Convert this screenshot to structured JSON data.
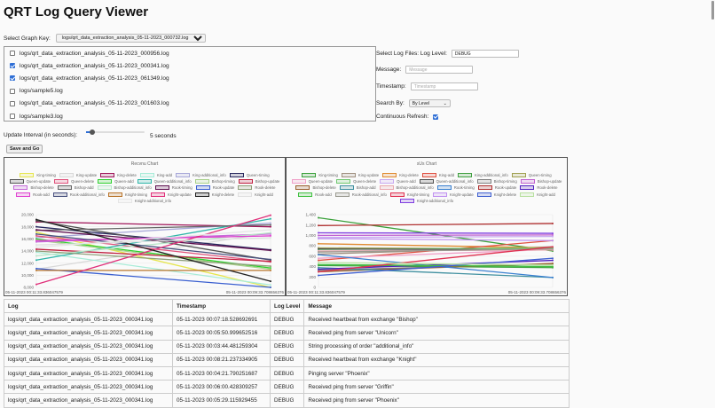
{
  "page": {
    "title": "QRT Log Query Viewer"
  },
  "graph_key": {
    "label": "Select Graph Key:",
    "selected": "logs/qrt_data_extraction_analysis_05-11-2023_000732.log"
  },
  "log_files": [
    {
      "name": "logs/qrt_data_extraction_analysis_05-11-2023_000956.log",
      "checked": false
    },
    {
      "name": "logs/qrt_data_extraction_analysis_05-11-2023_000341.log",
      "checked": true
    },
    {
      "name": "logs/qrt_data_extraction_analysis_05-11-2023_061349.log",
      "checked": true
    },
    {
      "name": "logs/sample5.log",
      "checked": false
    },
    {
      "name": "logs/qrt_data_extraction_analysis_05-11-2023_001603.log",
      "checked": false
    },
    {
      "name": "logs/sample3.log",
      "checked": false
    }
  ],
  "filters": {
    "select_log_files_label": "Select Log Files:",
    "log_level_label": "Log Level:",
    "log_level_value": "DEBUG",
    "message_label": "Message:",
    "message_placeholder": "Message",
    "timestamp_label": "Timestamp:",
    "timestamp_placeholder": "Timestamp",
    "search_by_label": "Search By:",
    "search_by_value": "By Level",
    "continuous_refresh_label": "Continuous Refresh:",
    "continuous_refresh": true
  },
  "update_interval": {
    "label": "Update Interval (in seconds):",
    "value": 5,
    "value_text": "5 seconds"
  },
  "save_button": "Save and Go",
  "chart_data": [
    {
      "type": "line",
      "title": "Recvnu Chart",
      "x": [
        "05-11-2023 00:11:33.836047579",
        "05-11-2023 00:09:33.708656376"
      ],
      "ylim": [
        8000,
        20000
      ],
      "yticks": [
        8000,
        10000,
        12000,
        14000,
        16000,
        18000,
        20000
      ],
      "ytick_labels": [
        "8,000",
        "10,000",
        "12,000",
        "14,000",
        "16,000",
        "18,000",
        "20,000"
      ],
      "grid": true,
      "legend_position": "top",
      "series": [
        {
          "name": "King-timing",
          "color": "#e6e64d",
          "values": [
            17100,
            8000
          ]
        },
        {
          "name": "King-update",
          "color": "#d8d8d8",
          "values": [
            11000,
            17000
          ]
        },
        {
          "name": "King-delete",
          "color": "#a0175a",
          "values": [
            18800,
            18000
          ]
        },
        {
          "name": "King-add",
          "color": "#a8ecd8",
          "values": [
            13800,
            8400
          ]
        },
        {
          "name": "King-additional_info",
          "color": "#a7a7d8",
          "values": [
            16200,
            18600
          ]
        },
        {
          "name": "Queen-timing",
          "color": "#28285e",
          "values": [
            18000,
            14200
          ]
        },
        {
          "name": "Queen-update",
          "color": "#555555",
          "values": [
            19000,
            12500
          ]
        },
        {
          "name": "Queen-delete",
          "color": "#e0507a",
          "values": [
            16500,
            12200
          ]
        },
        {
          "name": "Queen-add",
          "color": "#2ed12e",
          "values": [
            16000,
            11200
          ]
        },
        {
          "name": "Queen-additional_info",
          "color": "#2eb5a8",
          "values": [
            12500,
            19300
          ]
        },
        {
          "name": "Bishop-timing",
          "color": "#a8d08a",
          "values": [
            15800,
            11000
          ]
        },
        {
          "name": "Bishop-update",
          "color": "#c02040",
          "values": [
            14300,
            12300
          ]
        },
        {
          "name": "Bishop-delete",
          "color": "#c56ad8",
          "values": [
            15500,
            16800
          ]
        },
        {
          "name": "Bishop-add",
          "color": "#666666",
          "values": [
            17400,
            18300
          ]
        },
        {
          "name": "Bishop-additional_info",
          "color": "#b8e6c8",
          "values": [
            13200,
            17000
          ]
        },
        {
          "name": "Rook-timing",
          "color": "#601050",
          "values": [
            17500,
            14100
          ]
        },
        {
          "name": "Rook-update",
          "color": "#3a5fd0",
          "values": [
            11100,
            8000
          ]
        },
        {
          "name": "Rook-delete",
          "color": "#8f9f7a",
          "values": [
            14000,
            11500
          ]
        },
        {
          "name": "Rook-add",
          "color": "#e040d0",
          "values": [
            15700,
            16500
          ]
        },
        {
          "name": "Rook-additional_info",
          "color": "#48507e",
          "values": [
            16800,
            12600
          ]
        },
        {
          "name": "Knight-timing",
          "color": "#b8742a",
          "values": [
            10800,
            10800
          ]
        },
        {
          "name": "Knight-update",
          "color": "#e0307a",
          "values": [
            8500,
            19900
          ]
        },
        {
          "name": "Knight-delete",
          "color": "#222222",
          "values": [
            19200,
            9000
          ]
        },
        {
          "name": "Knight-add",
          "color": "#e0e0e0",
          "values": [
            15000,
            16200
          ]
        },
        {
          "name": "Knight-additional_info",
          "color": "#e6e6e6",
          "values": [
            14600,
            17500
          ]
        }
      ]
    },
    {
      "type": "line",
      "title": "sUs Chart",
      "x": [
        "05-11-2023 00:11:33.836047579",
        "05-11-2023 00:09:33.708656376"
      ],
      "ylim": [
        0,
        1400
      ],
      "yticks": [
        0,
        200,
        400,
        600,
        800,
        1000,
        1200,
        1400
      ],
      "ytick_labels": [
        "0",
        "200",
        "400",
        "600",
        "800",
        "1,000",
        "1,200",
        "1,400"
      ],
      "grid": true,
      "legend_position": "top",
      "series": [
        {
          "name": "King-timing",
          "color": "#3aa03a",
          "values": [
            1340,
            700
          ]
        },
        {
          "name": "King-update",
          "color": "#a09080",
          "values": [
            640,
            780
          ]
        },
        {
          "name": "King-delete",
          "color": "#e08a30",
          "values": [
            840,
            760
          ]
        },
        {
          "name": "King-add",
          "color": "#e05040",
          "values": [
            520,
            900
          ]
        },
        {
          "name": "King-additional_info",
          "color": "#40a040",
          "values": [
            420,
            380
          ]
        },
        {
          "name": "Queen-timing",
          "color": "#a0a050",
          "values": [
            760,
            740
          ]
        },
        {
          "name": "Queen-update",
          "color": "#f0a0c8",
          "values": [
            560,
            730
          ]
        },
        {
          "name": "Queen-delete",
          "color": "#70c870",
          "values": [
            730,
            760
          ]
        },
        {
          "name": "Queen-add",
          "color": "#c8a8f0",
          "values": [
            960,
            980
          ]
        },
        {
          "name": "Queen-additional_info",
          "color": "#505050",
          "values": [
            740,
            720
          ]
        },
        {
          "name": "Bishop-timing",
          "color": "#808080",
          "values": [
            330,
            450
          ]
        },
        {
          "name": "Bishop-update",
          "color": "#c060d0",
          "values": [
            1000,
            1010
          ]
        },
        {
          "name": "Bishop-delete",
          "color": "#9a6030",
          "values": [
            300,
            460
          ]
        },
        {
          "name": "Bishop-add",
          "color": "#4090a0",
          "values": [
            380,
            190
          ]
        },
        {
          "name": "Bishop-additional_info",
          "color": "#e8a8b0",
          "values": [
            700,
            720
          ]
        },
        {
          "name": "Rook-timing",
          "color": "#3a80d0",
          "values": [
            630,
            190
          ]
        },
        {
          "name": "Rook-update",
          "color": "#b03030",
          "values": [
            1190,
            1230
          ]
        },
        {
          "name": "Rook-delete",
          "color": "#5020c0",
          "values": [
            350,
            520
          ]
        },
        {
          "name": "Rook-add",
          "color": "#40c040",
          "values": [
            440,
            400
          ]
        },
        {
          "name": "Rook-additional_info",
          "color": "#9a9a90",
          "values": [
            680,
            740
          ]
        },
        {
          "name": "Knight-timing",
          "color": "#e03050",
          "values": [
            300,
            780
          ]
        },
        {
          "name": "Knight-update",
          "color": "#c090f0",
          "values": [
            940,
            900
          ]
        },
        {
          "name": "Knight-delete",
          "color": "#4060d0",
          "values": [
            230,
            560
          ]
        },
        {
          "name": "Knight-add",
          "color": "#b8e0a0",
          "values": [
            480,
            430
          ]
        },
        {
          "name": "Knight-additional_info",
          "color": "#8040e0",
          "values": [
            1050,
            1040
          ]
        }
      ]
    }
  ],
  "table": {
    "headers": [
      "Log",
      "Timestamp",
      "Log Level",
      "Message"
    ],
    "rows": [
      [
        "logs/qrt_data_extraction_analysis_05-11-2023_000341.log",
        "05-11-2023 00:07:18.528692691",
        "DEBUG",
        "Received heartbeat from exchange \"Bishop\""
      ],
      [
        "logs/qrt_data_extraction_analysis_05-11-2023_000341.log",
        "05-11-2023 00:05:50.999652516",
        "DEBUG",
        "Received ping from server \"Unicorn\""
      ],
      [
        "logs/qrt_data_extraction_analysis_05-11-2023_000341.log",
        "05-11-2023 00:03:44.481259304",
        "DEBUG",
        "String processing of order \"additional_info\""
      ],
      [
        "logs/qrt_data_extraction_analysis_05-11-2023_000341.log",
        "05-11-2023 00:08:21.237334905",
        "DEBUG",
        "Received heartbeat from exchange \"Knight\""
      ],
      [
        "logs/qrt_data_extraction_analysis_05-11-2023_000341.log",
        "05-11-2023 00:04:21.790251687",
        "DEBUG",
        "Pinging server \"Phoenix\""
      ],
      [
        "logs/qrt_data_extraction_analysis_05-11-2023_000341.log",
        "05-11-2023 00:06:00.428309257",
        "DEBUG",
        "Received ping from server \"Griffin\""
      ],
      [
        "logs/qrt_data_extraction_analysis_05-11-2023_000341.log",
        "05-11-2023 00:05:29.115929455",
        "DEBUG",
        "Received ping from server \"Phoenix\""
      ]
    ]
  }
}
